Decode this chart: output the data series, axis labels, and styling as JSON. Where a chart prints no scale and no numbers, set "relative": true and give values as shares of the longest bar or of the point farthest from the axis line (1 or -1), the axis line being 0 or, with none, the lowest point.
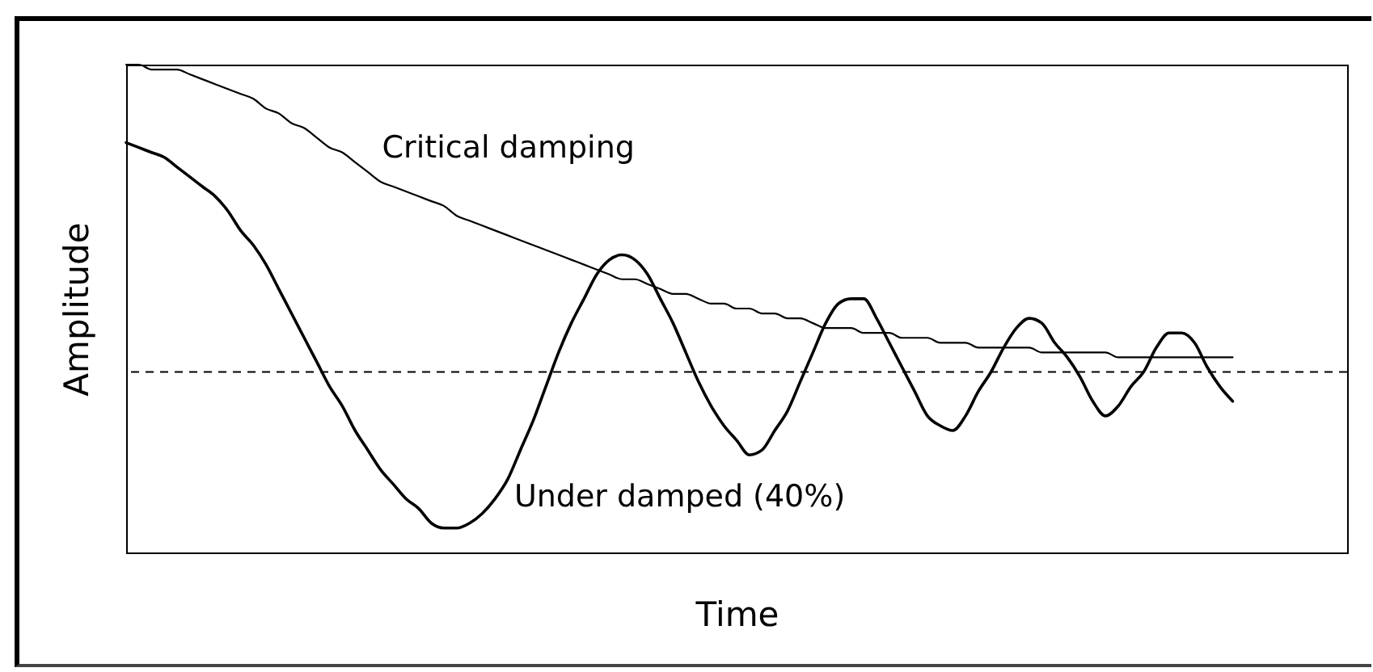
{
  "chart_data": {
    "type": "line",
    "xlabel": "Time",
    "ylabel": "Amplitude",
    "relative": true,
    "categories": [
      null,
      null,
      null,
      null,
      null,
      null,
      null,
      null,
      null,
      null,
      null,
      null,
      null,
      null,
      null,
      null,
      null,
      null,
      null,
      null,
      null,
      null,
      null,
      null,
      null,
      null,
      null,
      null,
      null,
      null,
      null,
      null,
      null,
      null,
      null,
      null,
      null,
      null,
      null,
      null,
      null,
      null,
      null,
      null,
      null,
      null,
      null,
      null,
      null,
      null,
      null,
      null,
      null,
      null,
      null,
      null,
      null,
      null,
      null,
      null,
      null,
      null,
      null,
      null,
      null,
      null,
      null,
      null,
      null,
      null,
      null,
      null,
      null,
      null,
      null,
      null,
      null,
      null,
      null,
      null,
      null,
      null,
      null,
      null,
      null,
      null,
      null,
      null,
      null,
      null,
      null,
      null,
      null,
      null,
      null,
      null,
      null
    ],
    "series": [
      {
        "name": "Critical damping",
        "color": "#000000",
        "values": [
          1,
          1,
          0.99,
          0.99,
          0.99,
          0.98,
          0.97,
          0.96,
          0.95,
          0.94,
          0.93,
          0.91,
          0.9,
          0.88,
          0.87,
          0.85,
          0.83,
          0.82,
          0.8,
          0.78,
          0.76,
          0.75,
          0.74,
          0.73,
          0.72,
          0.71,
          0.69,
          0.68,
          0.67,
          0.66,
          0.65,
          0.64,
          0.63,
          0.62,
          0.61,
          0.6,
          0.59,
          0.58,
          0.57,
          0.56,
          0.56,
          0.55,
          0.54,
          0.53,
          0.53,
          0.52,
          0.51,
          0.51,
          0.5,
          0.5,
          0.49,
          0.49,
          0.48,
          0.48,
          0.47,
          0.46,
          0.46,
          0.46,
          0.45,
          0.45,
          0.45,
          0.44,
          0.44,
          0.44,
          0.43,
          0.43,
          0.43,
          0.42,
          0.42,
          0.42,
          0.42,
          0.42,
          0.41,
          0.41,
          0.41,
          0.41,
          0.41,
          0.41,
          0.4,
          0.4,
          0.4,
          0.4,
          0.4,
          0.4,
          0.4,
          0.4,
          0.4,
          0.4,
          null,
          null,
          null,
          null,
          null,
          null,
          null,
          null,
          null
        ]
      },
      {
        "name": "Under damped (40%)",
        "color": "#000000",
        "values": [
          0.84,
          0.83,
          0.82,
          0.81,
          0.79,
          0.77,
          0.75,
          0.73,
          0.7,
          0.66,
          0.63,
          0.59,
          0.54,
          0.49,
          0.44,
          0.39,
          0.34,
          0.3,
          0.25,
          0.21,
          0.17,
          0.14,
          0.11,
          0.09,
          0.06,
          0.05,
          0.05,
          0.06,
          0.08,
          0.11,
          0.15,
          0.21,
          0.27,
          0.34,
          0.41,
          0.47,
          0.52,
          0.57,
          0.6,
          0.61,
          0.6,
          0.57,
          0.52,
          0.47,
          0.41,
          0.35,
          0.3,
          0.26,
          0.23,
          0.2,
          0.21,
          0.25,
          0.29,
          0.35,
          0.41,
          0.47,
          0.51,
          0.52,
          0.52,
          0.48,
          0.43,
          0.38,
          0.33,
          0.28,
          0.26,
          0.25,
          0.28,
          0.33,
          0.37,
          0.42,
          0.46,
          0.48,
          0.47,
          0.43,
          0.4,
          0.36,
          0.31,
          0.28,
          0.3,
          0.34,
          0.37,
          0.42,
          0.45,
          0.45,
          0.43,
          0.38,
          0.34,
          0.31,
          null,
          null,
          null,
          null,
          null,
          null,
          null,
          null,
          null
        ]
      }
    ],
    "ref_lines": [
      {
        "axis": "y",
        "value": 0.37,
        "color": "#000000",
        "line_style": "dashed"
      }
    ]
  }
}
